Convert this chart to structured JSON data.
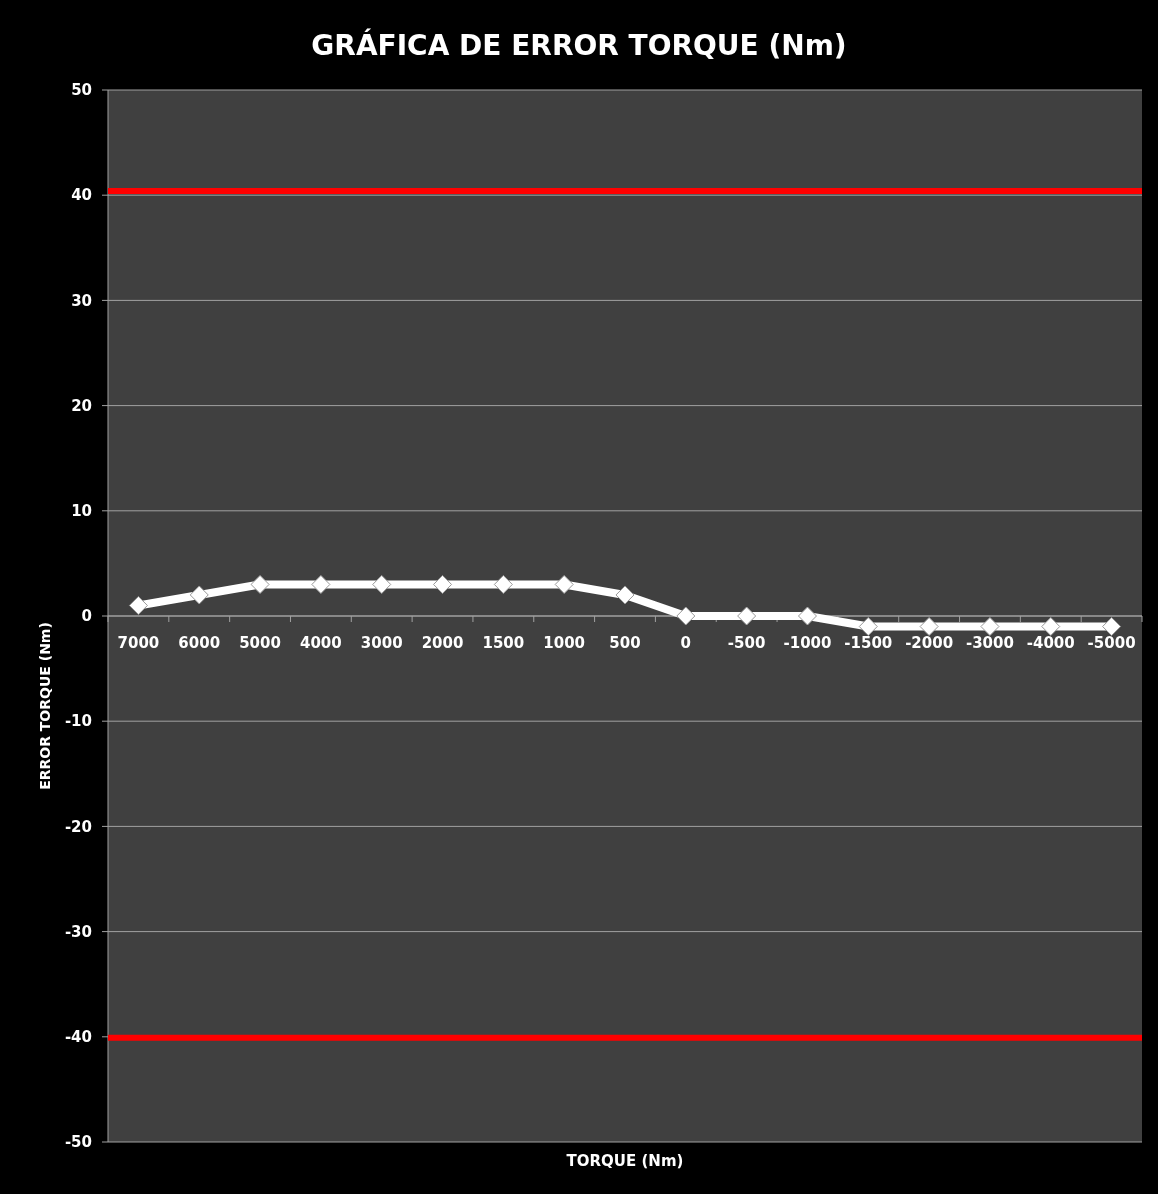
{
  "chart_data": {
    "type": "line",
    "title": "GRÁFICA DE ERROR TORQUE (Nm)",
    "xlabel": "TORQUE (Nm)",
    "ylabel": "ERROR TORQUE (Nm)",
    "categories": [
      "7000",
      "6000",
      "5000",
      "4000",
      "3000",
      "2000",
      "1500",
      "1000",
      "500",
      "0",
      "-500",
      "-1000",
      "-1500",
      "-2000",
      "-3000",
      "-4000",
      "-5000"
    ],
    "series": [
      {
        "color": "#ffffff",
        "values": [
          1,
          2,
          3,
          3,
          3,
          3,
          3,
          3,
          2,
          0,
          0,
          0,
          -1,
          -1,
          -1,
          -1,
          -1
        ]
      }
    ],
    "ylim": [
      -50,
      50
    ],
    "yticks": [
      -50,
      -40,
      -30,
      -20,
      -10,
      0,
      10,
      20,
      30,
      40,
      50
    ],
    "grid": "y",
    "marker": "diamond",
    "line_style": "solid",
    "ref_lines": [
      {
        "axis": "y",
        "value": 40.4,
        "color": "#ff0000"
      },
      {
        "axis": "y",
        "value": -40.1,
        "color": "#ff0000"
      }
    ]
  }
}
